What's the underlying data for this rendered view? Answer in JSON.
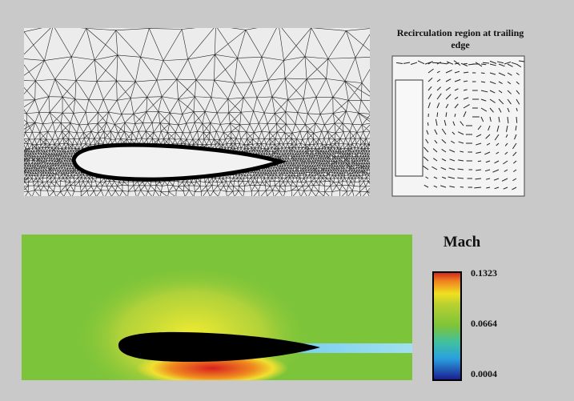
{
  "inset_title": "Recirculation region at trailing edge",
  "colorbar": {
    "title": "Mach",
    "ticks": [
      0.1323,
      0.0664,
      0.0004
    ]
  }
}
